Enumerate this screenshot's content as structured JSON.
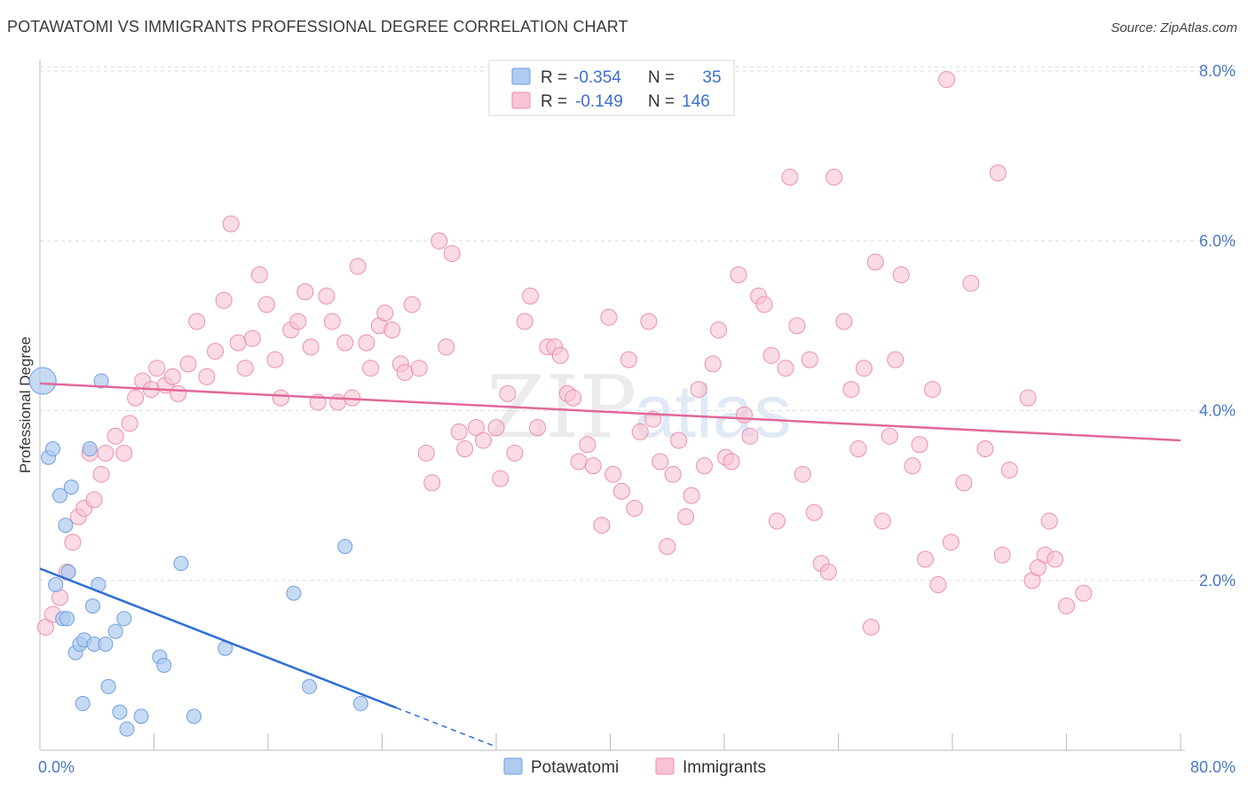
{
  "header": {
    "title": "POTAWATOMI VS IMMIGRANTS PROFESSIONAL DEGREE CORRELATION CHART",
    "source": "Source: ZipAtlas.com"
  },
  "watermark": {
    "text_a": "ZIP",
    "text_b": "atlas"
  },
  "legend_top": {
    "rows": [
      {
        "r_label": "R =",
        "r_value": "-0.354",
        "n_label": "N =",
        "n_value": "35",
        "color": "#aecbf0",
        "stroke": "#6f9fe0"
      },
      {
        "r_label": "R =",
        "r_value": "-0.149",
        "n_label": "N =",
        "n_value": "146",
        "color": "#f8c3d3",
        "stroke": "#ec8fab"
      }
    ]
  },
  "legend_bottom": {
    "items": [
      {
        "label": "Potawatomi",
        "color": "#aecbf0",
        "stroke": "#6f9fe0"
      },
      {
        "label": "Immigrants",
        "color": "#f8c3d3",
        "stroke": "#ec8fab"
      }
    ]
  },
  "chart_data": {
    "type": "scatter",
    "ylabel": "Professional Degree",
    "xlabel": "",
    "xlim": [
      0,
      80
    ],
    "ylim": [
      0,
      8.0
    ],
    "x_tick_labels": [
      "0.0%",
      "80.0%"
    ],
    "y_ticks": [
      2.0,
      4.0,
      6.0,
      8.0
    ],
    "y_tick_labels": [
      "2.0%",
      "4.0%",
      "6.0%",
      "8.0%"
    ],
    "grid": true,
    "series": [
      {
        "name": "Potawatomi",
        "color": "#aecbf0",
        "stroke": "#6f9fe0",
        "trend_color": "#2f6fd6",
        "trend": {
          "x0": 0,
          "y0": 2.14,
          "x1": 25,
          "y1": 0.5,
          "dash_to_x": 32
        },
        "points": [
          [
            0.2,
            4.35
          ],
          [
            0.6,
            3.45
          ],
          [
            0.9,
            3.55
          ],
          [
            1.1,
            1.95
          ],
          [
            1.4,
            3.0
          ],
          [
            1.6,
            1.55
          ],
          [
            1.8,
            2.65
          ],
          [
            1.9,
            1.55
          ],
          [
            2.2,
            3.1
          ],
          [
            2.0,
            2.1
          ],
          [
            2.5,
            1.15
          ],
          [
            2.8,
            1.25
          ],
          [
            3.1,
            1.3
          ],
          [
            3.0,
            0.55
          ],
          [
            3.5,
            3.55
          ],
          [
            3.7,
            1.7
          ],
          [
            3.8,
            1.25
          ],
          [
            4.1,
            1.95
          ],
          [
            4.3,
            4.35
          ],
          [
            4.6,
            1.25
          ],
          [
            4.8,
            0.75
          ],
          [
            5.3,
            1.4
          ],
          [
            5.6,
            0.45
          ],
          [
            5.9,
            1.55
          ],
          [
            6.1,
            0.25
          ],
          [
            7.1,
            0.4
          ],
          [
            8.4,
            1.1
          ],
          [
            8.7,
            1.0
          ],
          [
            9.9,
            2.2
          ],
          [
            10.8,
            0.4
          ],
          [
            13.0,
            1.2
          ],
          [
            17.8,
            1.85
          ],
          [
            18.9,
            0.75
          ],
          [
            21.4,
            2.4
          ],
          [
            22.5,
            0.55
          ]
        ]
      },
      {
        "name": "Immigrants",
        "color": "#f8c3d3",
        "stroke": "#ec8fab",
        "trend_color": "#e2689a",
        "trend": {
          "x0": 0,
          "y0": 4.32,
          "x1": 80,
          "y1": 3.65
        },
        "points": [
          [
            0.4,
            1.45
          ],
          [
            0.9,
            1.6
          ],
          [
            1.4,
            1.8
          ],
          [
            1.9,
            2.1
          ],
          [
            2.3,
            2.45
          ],
          [
            2.7,
            2.75
          ],
          [
            3.1,
            2.85
          ],
          [
            3.5,
            3.5
          ],
          [
            3.8,
            2.95
          ],
          [
            4.3,
            3.25
          ],
          [
            4.6,
            3.5
          ],
          [
            5.3,
            3.7
          ],
          [
            5.9,
            3.5
          ],
          [
            6.3,
            3.85
          ],
          [
            6.7,
            4.15
          ],
          [
            7.2,
            4.35
          ],
          [
            7.8,
            4.25
          ],
          [
            8.2,
            4.5
          ],
          [
            8.8,
            4.3
          ],
          [
            9.3,
            4.4
          ],
          [
            9.7,
            4.2
          ],
          [
            10.4,
            4.55
          ],
          [
            11.0,
            5.05
          ],
          [
            11.7,
            4.4
          ],
          [
            12.3,
            4.7
          ],
          [
            12.9,
            5.3
          ],
          [
            13.4,
            6.2
          ],
          [
            13.9,
            4.8
          ],
          [
            14.4,
            4.5
          ],
          [
            14.9,
            4.85
          ],
          [
            15.4,
            5.6
          ],
          [
            15.9,
            5.25
          ],
          [
            16.5,
            4.6
          ],
          [
            16.9,
            4.15
          ],
          [
            17.6,
            4.95
          ],
          [
            18.1,
            5.05
          ],
          [
            18.6,
            5.4
          ],
          [
            19.0,
            4.75
          ],
          [
            19.5,
            4.1
          ],
          [
            20.1,
            5.35
          ],
          [
            20.5,
            5.05
          ],
          [
            20.9,
            4.1
          ],
          [
            21.4,
            4.8
          ],
          [
            21.9,
            4.15
          ],
          [
            22.3,
            5.7
          ],
          [
            22.9,
            4.8
          ],
          [
            23.2,
            4.5
          ],
          [
            23.8,
            5.0
          ],
          [
            24.2,
            5.15
          ],
          [
            24.7,
            4.95
          ],
          [
            25.3,
            4.55
          ],
          [
            25.6,
            4.45
          ],
          [
            26.1,
            5.25
          ],
          [
            26.6,
            4.5
          ],
          [
            27.1,
            3.5
          ],
          [
            27.5,
            3.15
          ],
          [
            28.0,
            6.0
          ],
          [
            28.5,
            4.75
          ],
          [
            28.9,
            5.85
          ],
          [
            29.4,
            3.75
          ],
          [
            29.8,
            3.55
          ],
          [
            30.6,
            3.8
          ],
          [
            31.1,
            3.65
          ],
          [
            32.0,
            3.8
          ],
          [
            32.3,
            3.2
          ],
          [
            32.8,
            4.2
          ],
          [
            33.3,
            3.5
          ],
          [
            34.0,
            5.05
          ],
          [
            34.4,
            5.35
          ],
          [
            34.9,
            3.8
          ],
          [
            35.6,
            4.75
          ],
          [
            36.1,
            4.75
          ],
          [
            36.5,
            4.65
          ],
          [
            37.0,
            4.2
          ],
          [
            37.4,
            4.15
          ],
          [
            37.8,
            3.4
          ],
          [
            38.4,
            3.6
          ],
          [
            38.8,
            3.35
          ],
          [
            39.4,
            2.65
          ],
          [
            39.9,
            5.1
          ],
          [
            40.2,
            3.25
          ],
          [
            40.8,
            3.05
          ],
          [
            41.3,
            4.6
          ],
          [
            41.7,
            2.85
          ],
          [
            42.1,
            3.75
          ],
          [
            42.7,
            5.05
          ],
          [
            43.0,
            3.9
          ],
          [
            43.5,
            3.4
          ],
          [
            44.0,
            2.4
          ],
          [
            44.4,
            3.25
          ],
          [
            44.8,
            3.65
          ],
          [
            45.3,
            2.75
          ],
          [
            45.7,
            3.0
          ],
          [
            46.2,
            4.25
          ],
          [
            46.6,
            3.35
          ],
          [
            47.2,
            4.55
          ],
          [
            47.6,
            4.95
          ],
          [
            48.1,
            3.45
          ],
          [
            48.5,
            3.4
          ],
          [
            49.0,
            5.6
          ],
          [
            49.4,
            3.95
          ],
          [
            49.8,
            3.7
          ],
          [
            50.4,
            5.35
          ],
          [
            50.8,
            5.25
          ],
          [
            51.3,
            4.65
          ],
          [
            51.7,
            2.7
          ],
          [
            52.3,
            4.5
          ],
          [
            52.6,
            6.75
          ],
          [
            53.1,
            5.0
          ],
          [
            53.5,
            3.25
          ],
          [
            54.0,
            4.6
          ],
          [
            54.3,
            2.8
          ],
          [
            54.8,
            2.2
          ],
          [
            55.3,
            2.1
          ],
          [
            55.7,
            6.75
          ],
          [
            56.4,
            5.05
          ],
          [
            56.9,
            4.25
          ],
          [
            57.4,
            3.55
          ],
          [
            57.8,
            4.5
          ],
          [
            58.3,
            1.45
          ],
          [
            58.6,
            5.75
          ],
          [
            59.1,
            2.7
          ],
          [
            59.6,
            3.7
          ],
          [
            60.0,
            4.6
          ],
          [
            60.4,
            5.6
          ],
          [
            61.2,
            3.35
          ],
          [
            61.7,
            3.6
          ],
          [
            62.1,
            2.25
          ],
          [
            62.6,
            4.25
          ],
          [
            63.0,
            1.95
          ],
          [
            63.9,
            2.45
          ],
          [
            64.8,
            3.15
          ],
          [
            65.3,
            5.5
          ],
          [
            66.3,
            3.55
          ],
          [
            67.2,
            6.8
          ],
          [
            67.5,
            2.3
          ],
          [
            68.0,
            3.3
          ],
          [
            69.3,
            4.15
          ],
          [
            69.6,
            2.0
          ],
          [
            70.0,
            2.15
          ],
          [
            70.5,
            2.3
          ],
          [
            70.8,
            2.7
          ],
          [
            71.2,
            2.25
          ],
          [
            72.0,
            1.7
          ],
          [
            73.2,
            1.85
          ],
          [
            63.6,
            7.9
          ]
        ]
      }
    ]
  }
}
